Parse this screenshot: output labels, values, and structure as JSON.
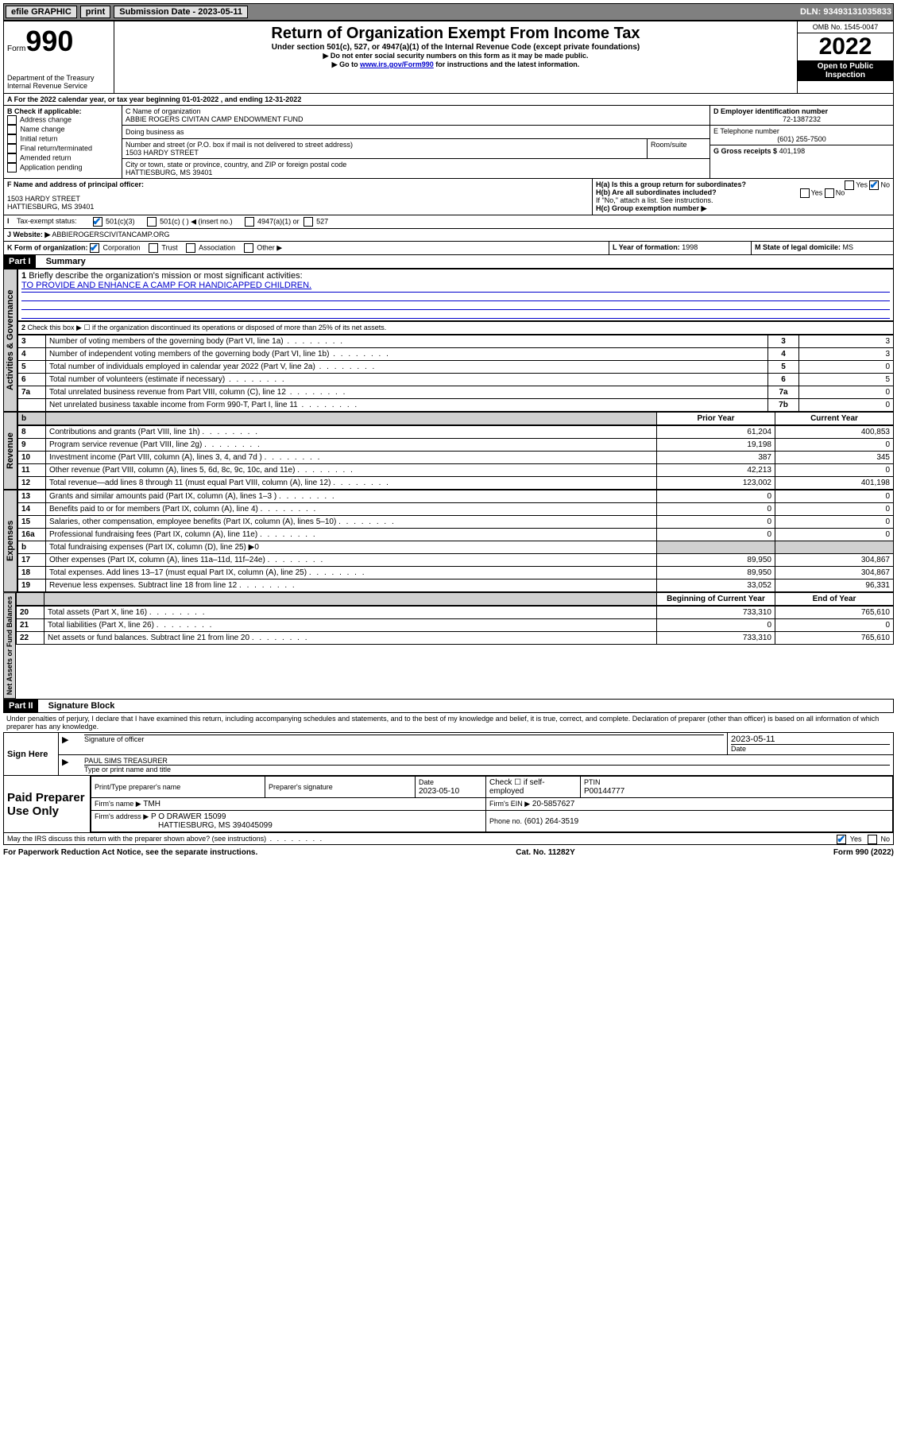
{
  "topbar": {
    "efile_label": "efile GRAPHIC",
    "print_btn": "print",
    "submission_label": "Submission Date -",
    "submission_date": "2023-05-11",
    "dln_label": "DLN:",
    "dln": "93493131035833"
  },
  "header": {
    "form_label": "Form",
    "form_number": "990",
    "department": "Department of the Treasury Internal Revenue Service",
    "title": "Return of Organization Exempt From Income Tax",
    "subtitle": "Under section 501(c), 527, or 4947(a)(1) of the Internal Revenue Code (except private foundations)",
    "instr1": "▶ Do not enter social security numbers on this form as it may be made public.",
    "instr2_prefix": "▶ Go to ",
    "instr2_link": "www.irs.gov/Form990",
    "instr2_suffix": " for instructions and the latest information.",
    "omb": "OMB No. 1545-0047",
    "year": "2022",
    "inspect": "Open to Public Inspection"
  },
  "blockA": {
    "line": "A For the 2022 calendar year, or tax year beginning 01-01-2022    , and ending 12-31-2022"
  },
  "blockB": {
    "title": "B Check if applicable:",
    "items": [
      "Address change",
      "Name change",
      "Initial return",
      "Final return/terminated",
      "Amended return",
      "Application pending"
    ]
  },
  "blockC": {
    "name_label": "C Name of organization",
    "name": "ABBIE ROGERS CIVITAN CAMP ENDOWMENT FUND",
    "dba_label": "Doing business as",
    "street_label": "Number and street (or P.O. box if mail is not delivered to street address)",
    "room_label": "Room/suite",
    "street": "1503 HARDY STREET",
    "city_label": "City or town, state or province, country, and ZIP or foreign postal code",
    "city": "HATTIESBURG, MS  39401"
  },
  "blockD": {
    "label": "D Employer identification number",
    "value": "72-1387232"
  },
  "blockE": {
    "label": "E Telephone number",
    "value": "(601) 255-7500"
  },
  "blockG": {
    "label": "G Gross receipts $",
    "value": "401,198"
  },
  "blockF": {
    "label": "F  Name and address of principal officer:",
    "addr1": "1503 HARDY STREET",
    "addr2": "HATTIESBURG, MS  39401"
  },
  "blockH": {
    "a": "H(a)  Is this a group return for subordinates?",
    "b": "H(b)  Are all subordinates included?",
    "b_note": "If \"No,\" attach a list. See instructions.",
    "c": "H(c)  Group exemption number ▶",
    "yes": "Yes",
    "no": "No"
  },
  "blockI": {
    "label": "I",
    "text": "Tax-exempt status:",
    "o1": "501(c)(3)",
    "o2": "501(c) (  ) ◀ (insert no.)",
    "o3": "4947(a)(1) or",
    "o4": "527"
  },
  "blockJ": {
    "label": "J",
    "text": "Website: ▶",
    "value": "ABBIEROGERSCIVITANCAMP.ORG"
  },
  "blockK": {
    "label": "K Form of organization:",
    "o1": "Corporation",
    "o2": "Trust",
    "o3": "Association",
    "o4": "Other ▶"
  },
  "blockL": {
    "label": "L Year of formation:",
    "value": "1998"
  },
  "blockM": {
    "label": "M State of legal domicile:",
    "value": "MS"
  },
  "part1": {
    "tag": "Part I",
    "title": "Summary",
    "q1": "Briefly describe the organization's mission or most significant activities:",
    "q1ans": "TO PROVIDE AND ENHANCE A CAMP FOR HANDICAPPED CHILDREN.",
    "q2": "Check this box ▶ ☐  if the organization discontinued its operations or disposed of more than 25% of its net assets.",
    "rows_ag": [
      {
        "n": "3",
        "t": "Number of voting members of the governing body (Part VI, line 1a)",
        "c": "3",
        "v": "3"
      },
      {
        "n": "4",
        "t": "Number of independent voting members of the governing body (Part VI, line 1b)",
        "c": "4",
        "v": "3"
      },
      {
        "n": "5",
        "t": "Total number of individuals employed in calendar year 2022 (Part V, line 2a)",
        "c": "5",
        "v": "0"
      },
      {
        "n": "6",
        "t": "Total number of volunteers (estimate if necessary)",
        "c": "6",
        "v": "5"
      },
      {
        "n": "7a",
        "t": "Total unrelated business revenue from Part VIII, column (C), line 12",
        "c": "7a",
        "v": "0"
      },
      {
        "n": "",
        "t": "Net unrelated business taxable income from Form 990-T, Part I, line 11",
        "c": "7b",
        "v": "0"
      }
    ],
    "col_prior": "Prior Year",
    "col_curr": "Current Year",
    "rows_rev": [
      {
        "n": "8",
        "t": "Contributions and grants (Part VIII, line 1h)",
        "p": "61,204",
        "c": "400,853"
      },
      {
        "n": "9",
        "t": "Program service revenue (Part VIII, line 2g)",
        "p": "19,198",
        "c": "0"
      },
      {
        "n": "10",
        "t": "Investment income (Part VIII, column (A), lines 3, 4, and 7d )",
        "p": "387",
        "c": "345"
      },
      {
        "n": "11",
        "t": "Other revenue (Part VIII, column (A), lines 5, 6d, 8c, 9c, 10c, and 11e)",
        "p": "42,213",
        "c": "0"
      },
      {
        "n": "12",
        "t": "Total revenue—add lines 8 through 11 (must equal Part VIII, column (A), line 12)",
        "p": "123,002",
        "c": "401,198"
      }
    ],
    "rows_exp": [
      {
        "n": "13",
        "t": "Grants and similar amounts paid (Part IX, column (A), lines 1–3 )",
        "p": "0",
        "c": "0"
      },
      {
        "n": "14",
        "t": "Benefits paid to or for members (Part IX, column (A), line 4)",
        "p": "0",
        "c": "0"
      },
      {
        "n": "15",
        "t": "Salaries, other compensation, employee benefits (Part IX, column (A), lines 5–10)",
        "p": "0",
        "c": "0"
      },
      {
        "n": "16a",
        "t": "Professional fundraising fees (Part IX, column (A), line 11e)",
        "p": "0",
        "c": "0"
      },
      {
        "n": "b",
        "t": "Total fundraising expenses (Part IX, column (D), line 25) ▶0",
        "p": "",
        "c": "",
        "shade": true
      },
      {
        "n": "17",
        "t": "Other expenses (Part IX, column (A), lines 11a–11d, 11f–24e)",
        "p": "89,950",
        "c": "304,867"
      },
      {
        "n": "18",
        "t": "Total expenses. Add lines 13–17 (must equal Part IX, column (A), line 25)",
        "p": "89,950",
        "c": "304,867"
      },
      {
        "n": "19",
        "t": "Revenue less expenses. Subtract line 18 from line 12",
        "p": "33,052",
        "c": "96,331"
      }
    ],
    "col_beg": "Beginning of Current Year",
    "col_end": "End of Year",
    "rows_na": [
      {
        "n": "20",
        "t": "Total assets (Part X, line 16)",
        "p": "733,310",
        "c": "765,610"
      },
      {
        "n": "21",
        "t": "Total liabilities (Part X, line 26)",
        "p": "0",
        "c": "0"
      },
      {
        "n": "22",
        "t": "Net assets or fund balances. Subtract line 21 from line 20",
        "p": "733,310",
        "c": "765,610"
      }
    ],
    "vlabels": {
      "ag": "Activities & Governance",
      "rev": "Revenue",
      "exp": "Expenses",
      "na": "Net Assets or Fund Balances"
    }
  },
  "part2": {
    "tag": "Part II",
    "title": "Signature Block",
    "decl": "Under penalties of perjury, I declare that I have examined this return, including accompanying schedules and statements, and to the best of my knowledge and belief, it is true, correct, and complete. Declaration of preparer (other than officer) is based on all information of which preparer has any knowledge.",
    "sign_here": "Sign Here",
    "sig_officer": "Signature of officer",
    "date": "Date",
    "date_val": "2023-05-11",
    "officer_name": "PAUL SIMS  TREASURER",
    "name_lbl": "Type or print name and title",
    "paid": "Paid Preparer Use Only",
    "pt_name_lbl": "Print/Type preparer's name",
    "prep_sig_lbl": "Preparer's signature",
    "prep_date": "2023-05-10",
    "check_self": "Check ☐  if self-employed",
    "ptin_lbl": "PTIN",
    "ptin": "P00144777",
    "firm_name_lbl": "Firm's name    ▶",
    "firm_name": "TMH",
    "firm_ein_lbl": "Firm's EIN ▶",
    "firm_ein": "20-5857627",
    "firm_addr_lbl": "Firm's address ▶",
    "firm_addr1": "P O DRAWER 15099",
    "firm_addr2": "HATTIESBURG, MS  394045099",
    "phone_lbl": "Phone no.",
    "phone": "(601) 264-3519",
    "discuss": "May the IRS discuss this return with the preparer shown above? (see instructions)"
  },
  "footer": {
    "left": "For Paperwork Reduction Act Notice, see the separate instructions.",
    "mid": "Cat. No. 11282Y",
    "right": "Form 990 (2022)"
  }
}
